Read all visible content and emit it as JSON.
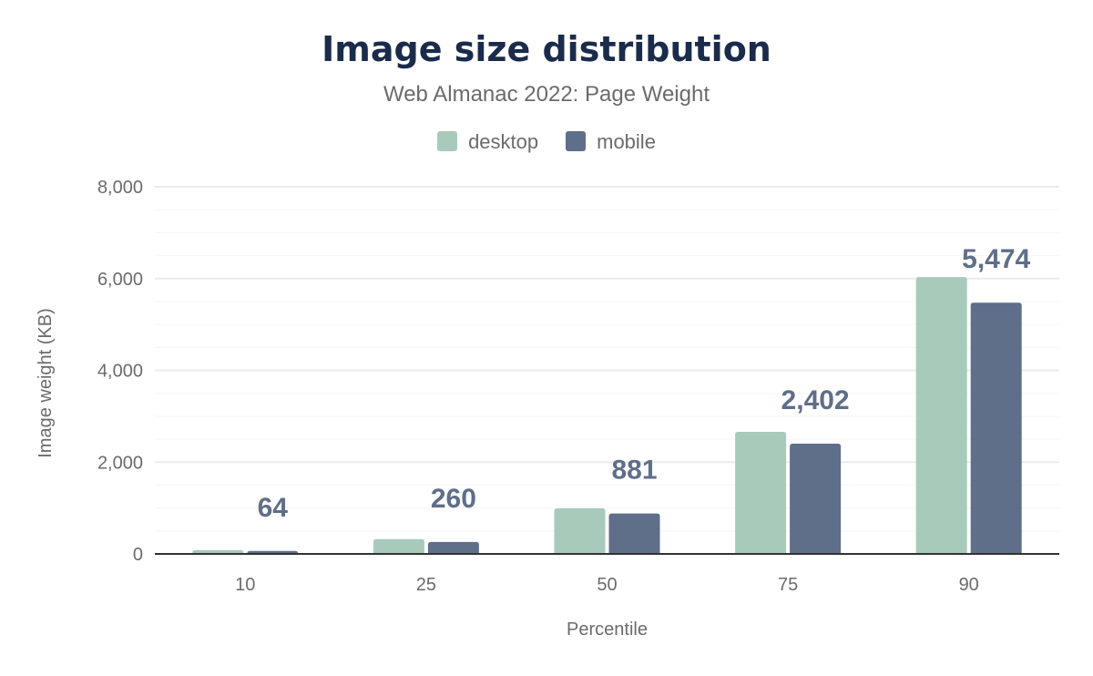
{
  "chart_data": {
    "type": "bar",
    "title": "Image size distribution",
    "subtitle": "Web Almanac 2022: Page Weight",
    "xlabel": "Percentile",
    "ylabel": "Image weight (KB)",
    "categories": [
      "10",
      "25",
      "50",
      "75",
      "90"
    ],
    "ylim": [
      0,
      8000
    ],
    "yticks": [
      "0",
      "2,000",
      "4,000",
      "6,000",
      "8,000"
    ],
    "grid": true,
    "legend_position": "top",
    "series": [
      {
        "name": "desktop",
        "color": "#a8cabb",
        "values": [
          85,
          323,
          992,
          2659,
          6032
        ]
      },
      {
        "name": "mobile",
        "color": "#5f6e89",
        "values": [
          64,
          260,
          881,
          2402,
          5474
        ],
        "data_labels": [
          "64",
          "260",
          "881",
          "2,402",
          "5,474"
        ]
      }
    ]
  }
}
